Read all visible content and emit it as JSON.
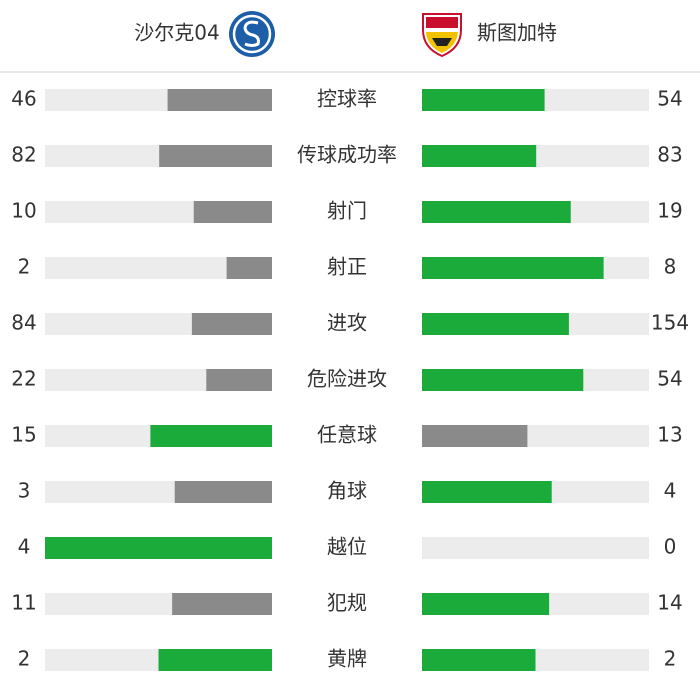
{
  "header": {
    "home": "沙尔克04",
    "away": "斯图加特"
  },
  "stats": [
    {
      "label": "控球率",
      "home": 46,
      "away": 54
    },
    {
      "label": "传球成功率",
      "home": 82,
      "away": 83
    },
    {
      "label": "射门",
      "home": 10,
      "away": 19
    },
    {
      "label": "射正",
      "home": 2,
      "away": 8
    },
    {
      "label": "进攻",
      "home": 84,
      "away": 154
    },
    {
      "label": "危险进攻",
      "home": 22,
      "away": 54
    },
    {
      "label": "任意球",
      "home": 15,
      "away": 13
    },
    {
      "label": "角球",
      "home": 3,
      "away": 4
    },
    {
      "label": "越位",
      "home": 4,
      "away": 0
    },
    {
      "label": "犯规",
      "home": 11,
      "away": 14
    },
    {
      "label": "黄牌",
      "home": 2,
      "away": 2
    }
  ]
}
